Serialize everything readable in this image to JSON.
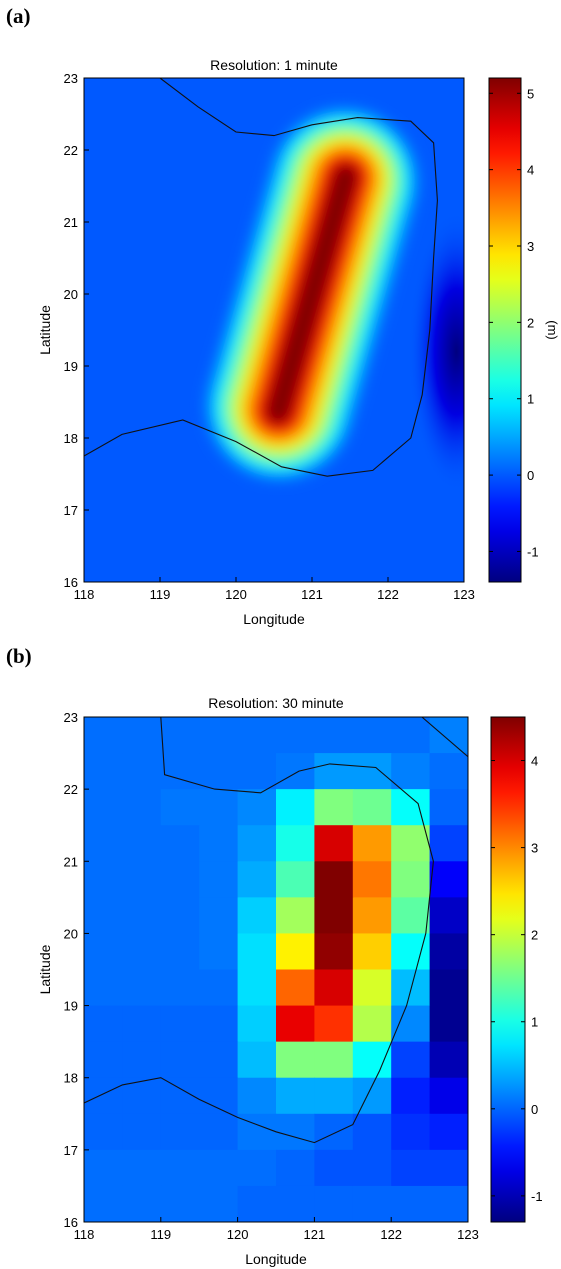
{
  "panel_labels": [
    "(a)",
    "(b)"
  ],
  "chart_data": [
    {
      "type": "heatmap",
      "panel": "(a)",
      "title": "Resolution: 1 minute",
      "xlabel": "Longitude",
      "ylabel": "Latitude",
      "xlim": [
        118,
        123
      ],
      "ylim": [
        16,
        23
      ],
      "xticks": [
        118,
        119,
        120,
        121,
        122,
        123
      ],
      "yticks": [
        16,
        17,
        18,
        19,
        20,
        21,
        22,
        23
      ],
      "colorbar": {
        "label": "(m)",
        "range": [
          -1.4,
          5.2
        ],
        "ticks": [
          -1,
          0,
          1,
          2,
          3,
          4,
          5
        ]
      },
      "background_value": 0,
      "features": [
        {
          "kind": "positive_elongated_peak",
          "lon_from": 120.55,
          "lat_from": 18.35,
          "lon_to": 121.45,
          "lat_to": 21.65,
          "peak_m": 5.2
        },
        {
          "kind": "negative_trough",
          "lon": 122.9,
          "lat": 19.2,
          "min_m": -1.4
        }
      ],
      "zero_contour": [
        [
          [
            118.0,
            17.75
          ],
          [
            118.5,
            18.05
          ],
          [
            119.3,
            18.25
          ],
          [
            120.0,
            17.95
          ],
          [
            120.6,
            17.6
          ],
          [
            121.2,
            17.47
          ],
          [
            121.8,
            17.55
          ],
          [
            122.3,
            18.0
          ],
          [
            122.45,
            18.6
          ],
          [
            122.55,
            19.5
          ],
          [
            122.6,
            20.5
          ],
          [
            122.65,
            21.3
          ],
          [
            122.6,
            22.1
          ],
          [
            122.3,
            22.4
          ],
          [
            121.6,
            22.45
          ],
          [
            121.0,
            22.35
          ],
          [
            120.5,
            22.2
          ],
          [
            120.0,
            22.25
          ],
          [
            119.5,
            22.6
          ],
          [
            119.0,
            23.0
          ]
        ]
      ]
    },
    {
      "type": "heatmap",
      "panel": "(b)",
      "title": "Resolution: 30 minute",
      "xlabel": "Longitude",
      "ylabel": "Latitude",
      "xlim": [
        118,
        123
      ],
      "ylim": [
        16,
        23
      ],
      "xticks": [
        118,
        119,
        120,
        121,
        122,
        123
      ],
      "yticks": [
        16,
        17,
        18,
        19,
        20,
        21,
        22,
        23
      ],
      "colorbar": {
        "range": [
          -1.3,
          4.5
        ],
        "ticks": [
          -1,
          0,
          1,
          2,
          3,
          4
        ]
      },
      "cell_size_deg": 0.5,
      "lon_centers": [
        118.25,
        118.75,
        119.25,
        119.75,
        120.25,
        120.75,
        121.25,
        121.75,
        122.25,
        122.75
      ],
      "lat_centers": [
        22.75,
        22.25,
        21.75,
        21.25,
        20.75,
        20.25,
        19.75,
        19.25,
        18.75,
        18.25,
        17.75,
        17.25,
        16.75,
        16.25
      ],
      "values": [
        [
          0.05,
          0.05,
          0.05,
          0.05,
          0.05,
          0.05,
          0.05,
          0.05,
          0.05,
          0.15
        ],
        [
          0.05,
          0.05,
          0.05,
          0.05,
          0.05,
          0.1,
          0.3,
          0.3,
          0.15,
          0.05
        ],
        [
          0.05,
          0.05,
          0.1,
          0.1,
          0.2,
          0.8,
          1.6,
          1.5,
          0.9,
          0.0
        ],
        [
          0.05,
          0.05,
          0.05,
          0.1,
          0.3,
          1.0,
          4.0,
          2.9,
          1.7,
          -0.2
        ],
        [
          0.05,
          0.05,
          0.05,
          0.1,
          0.4,
          1.3,
          4.5,
          3.1,
          1.6,
          -0.6
        ],
        [
          0.05,
          0.05,
          0.05,
          0.1,
          0.6,
          1.8,
          4.5,
          2.9,
          1.4,
          -0.9
        ],
        [
          0.05,
          0.05,
          0.05,
          0.1,
          0.7,
          2.4,
          4.4,
          2.6,
          0.9,
          -1.1
        ],
        [
          0.05,
          0.05,
          0.05,
          0.05,
          0.7,
          3.2,
          4.0,
          2.1,
          0.5,
          -1.2
        ],
        [
          0.0,
          0.0,
          0.0,
          0.0,
          0.6,
          3.9,
          3.5,
          1.9,
          0.2,
          -1.2
        ],
        [
          0.0,
          0.0,
          0.0,
          0.0,
          0.5,
          1.6,
          1.6,
          0.9,
          -0.2,
          -1.0
        ],
        [
          0.0,
          0.0,
          0.0,
          0.0,
          0.2,
          0.4,
          0.4,
          0.3,
          -0.4,
          -0.7
        ],
        [
          0.0,
          0.0,
          0.0,
          0.0,
          0.1,
          0.1,
          0.0,
          -0.1,
          -0.3,
          -0.4
        ],
        [
          0.05,
          0.05,
          0.05,
          0.05,
          0.05,
          0.0,
          -0.1,
          -0.1,
          -0.2,
          -0.2
        ],
        [
          0.05,
          0.05,
          0.05,
          0.05,
          0.0,
          0.0,
          0.0,
          0.0,
          0.0,
          0.0
        ]
      ],
      "zero_contour": [
        [
          [
            118.0,
            17.65
          ],
          [
            118.5,
            17.9
          ],
          [
            119.0,
            18.0
          ],
          [
            119.5,
            17.7
          ],
          [
            120.0,
            17.45
          ],
          [
            120.5,
            17.25
          ],
          [
            121.0,
            17.1
          ],
          [
            121.5,
            17.35
          ],
          [
            121.85,
            18.1
          ],
          [
            122.2,
            19.0
          ],
          [
            122.45,
            20.0
          ],
          [
            122.55,
            21.0
          ],
          [
            122.35,
            21.8
          ],
          [
            121.8,
            22.3
          ],
          [
            121.2,
            22.35
          ],
          [
            120.8,
            22.25
          ],
          [
            120.3,
            21.95
          ],
          [
            119.7,
            22.0
          ],
          [
            119.05,
            22.2
          ],
          [
            119.0,
            23.0
          ]
        ],
        [
          [
            122.4,
            23.0
          ],
          [
            123.0,
            22.45
          ]
        ]
      ]
    }
  ]
}
